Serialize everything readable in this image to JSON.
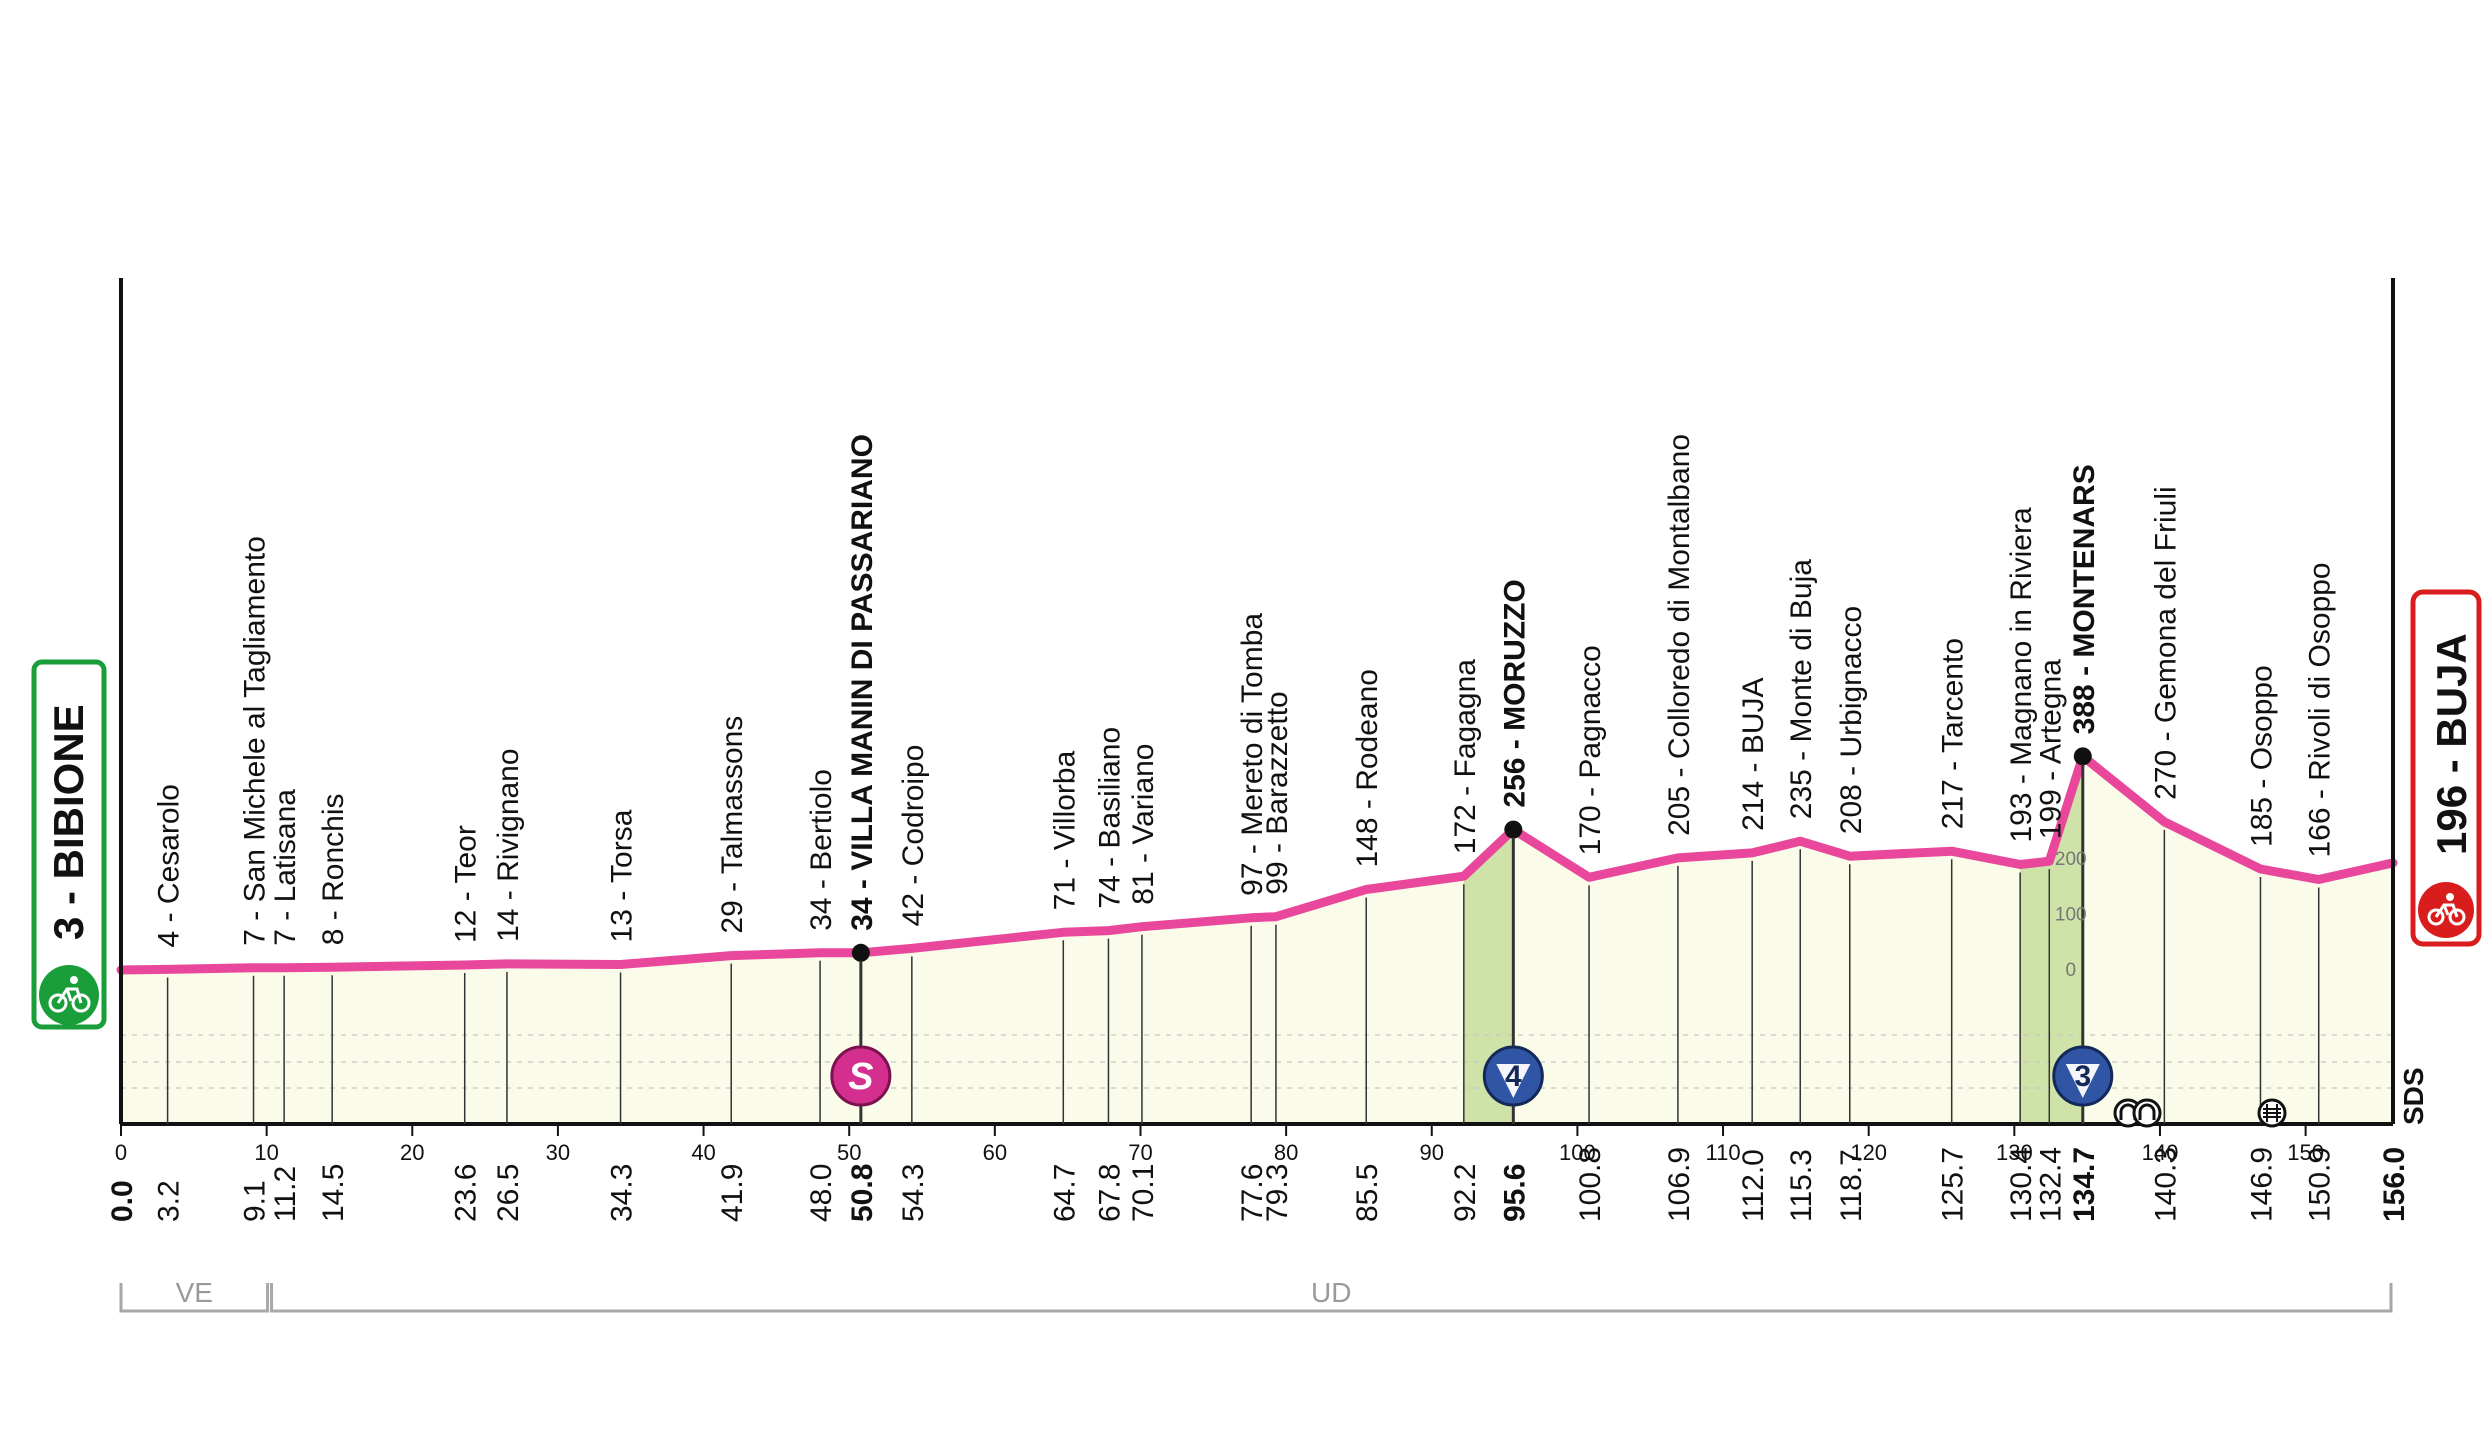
{
  "chart_data": {
    "type": "area",
    "x_axis": {
      "unit": "km",
      "min": 0,
      "max": 156,
      "tick_labels": [
        0,
        10,
        20,
        30,
        40,
        50,
        60,
        70,
        80,
        90,
        100,
        110,
        120,
        130,
        140,
        150
      ]
    },
    "y_axis": {
      "unit": "m",
      "scale_labels": [
        "200",
        "100",
        "0"
      ]
    },
    "start": {
      "label": "3 - BIBIONE",
      "km": 0,
      "altitude": 3
    },
    "finish": {
      "label": "196 - BUJA",
      "km": 156,
      "altitude": 196
    },
    "profile": {
      "km": [
        0,
        3.2,
        9.1,
        11.2,
        14.5,
        23.6,
        26.5,
        34.3,
        41.9,
        48.0,
        50.8,
        54.3,
        64.7,
        67.8,
        70.1,
        77.6,
        79.3,
        85.5,
        92.2,
        95.6,
        100.8,
        106.9,
        112.0,
        115.3,
        118.7,
        125.7,
        130.4,
        132.4,
        134.7,
        140.3,
        146.9,
        150.9,
        156.0
      ],
      "altitude": [
        3,
        4,
        7,
        7,
        8,
        12,
        14,
        13,
        29,
        34,
        34,
        42,
        71,
        74,
        81,
        97,
        99,
        148,
        172,
        256,
        170,
        205,
        214,
        235,
        208,
        217,
        193,
        199,
        388,
        270,
        185,
        166,
        196
      ]
    },
    "waypoints": [
      {
        "label": "4 - Cesarolo",
        "km": "3.2",
        "bold": false
      },
      {
        "label": "7 - San Michele al Tagliamento",
        "km": "9.1",
        "bold": false
      },
      {
        "label": "7 - Latisana",
        "km": "11.2",
        "bold": false
      },
      {
        "label": "8 - Ronchis",
        "km": "14.5",
        "bold": false
      },
      {
        "label": "12 - Teor",
        "km": "23.6",
        "bold": false
      },
      {
        "label": "14 - Rivignano",
        "km": "26.5",
        "bold": false
      },
      {
        "label": "13 - Torsa",
        "km": "34.3",
        "bold": false
      },
      {
        "label": "29 - Talmassons",
        "km": "41.9",
        "bold": false
      },
      {
        "label": "34 - Bertiolo",
        "km": "48.0",
        "bold": false
      },
      {
        "label": "34 - VILLA MANIN DI PASSARIANO",
        "km": "50.8",
        "bold": true
      },
      {
        "label": "42 - Codroipo",
        "km": "54.3",
        "bold": false
      },
      {
        "label": "71 - Villorba",
        "km": "64.7",
        "bold": false
      },
      {
        "label": "74 - Basiliano",
        "km": "67.8",
        "bold": false
      },
      {
        "label": "81 - Variano",
        "km": "70.1",
        "bold": false
      },
      {
        "label": "97 - Mereto di Tomba",
        "km": "77.6",
        "bold": false
      },
      {
        "label": "99 - Barazzetto",
        "km": "79.3",
        "bold": false
      },
      {
        "label": "148 - Rodeano",
        "km": "85.5",
        "bold": false
      },
      {
        "label": "172 - Fagagna",
        "km": "92.2",
        "bold": false
      },
      {
        "label": "256 - MORUZZO",
        "km": "95.6",
        "bold": true
      },
      {
        "label": "170 - Pagnacco",
        "km": "100.8",
        "bold": false
      },
      {
        "label": "205 - Colloredo di Montalbano",
        "km": "106.9",
        "bold": false
      },
      {
        "label": "214 - BUJA",
        "km": "112.0",
        "bold": false
      },
      {
        "label": "235 - Monte di Buja",
        "km": "115.3",
        "bold": false
      },
      {
        "label": "208 - Urbignacco",
        "km": "118.7",
        "bold": false
      },
      {
        "label": "217 - Tarcento",
        "km": "125.7",
        "bold": false
      },
      {
        "label": "193 - Magnano in Riviera",
        "km": "130.4",
        "bold": false
      },
      {
        "label": "199 - Artegna",
        "km": "132.4",
        "bold": false
      },
      {
        "label": "388 - MONTENARS",
        "km": "134.7",
        "bold": true
      },
      {
        "label": "270 - Gemona del Friuli",
        "km": "140.3",
        "bold": false
      },
      {
        "label": "185 - Osoppo",
        "km": "146.9",
        "bold": false
      },
      {
        "label": "166 - Rivoli di Osoppo",
        "km": "150.9",
        "bold": false
      }
    ],
    "km_markers": [
      {
        "text": "0.0",
        "km": 0,
        "bold": true
      },
      {
        "text": "156.0",
        "km": 156,
        "bold": true
      }
    ],
    "climbs": [
      {
        "badge": "4",
        "km_start": 92.2,
        "km_end": 95.6
      },
      {
        "badge": "3",
        "km_start": 130.4,
        "km_end": 134.7
      }
    ],
    "sprint": {
      "badge": "S",
      "km": 50.8
    },
    "regions": [
      {
        "label": "VE",
        "km_start": 0,
        "km_end": 10.2
      },
      {
        "label": "UD",
        "km_start": 10.2,
        "km_end": 156
      }
    ],
    "side_mark": "SDS",
    "colors": {
      "profile_line": "#e9479b",
      "profile_fill": "#fbfbea",
      "climb_fill": "#cfe3a8",
      "start_border": "#1a9e3a",
      "finish_border": "#d91c1c",
      "sprint_badge": "#d42f8e",
      "climb_badge": "#2f55a4",
      "axis": "#111111",
      "region_line": "#a8a8a8"
    },
    "icons": {
      "start": "cyclist-icon",
      "finish": "cyclist-icon",
      "tunnel": "tunnel-icon",
      "railway": "railway-crossing-icon"
    }
  }
}
